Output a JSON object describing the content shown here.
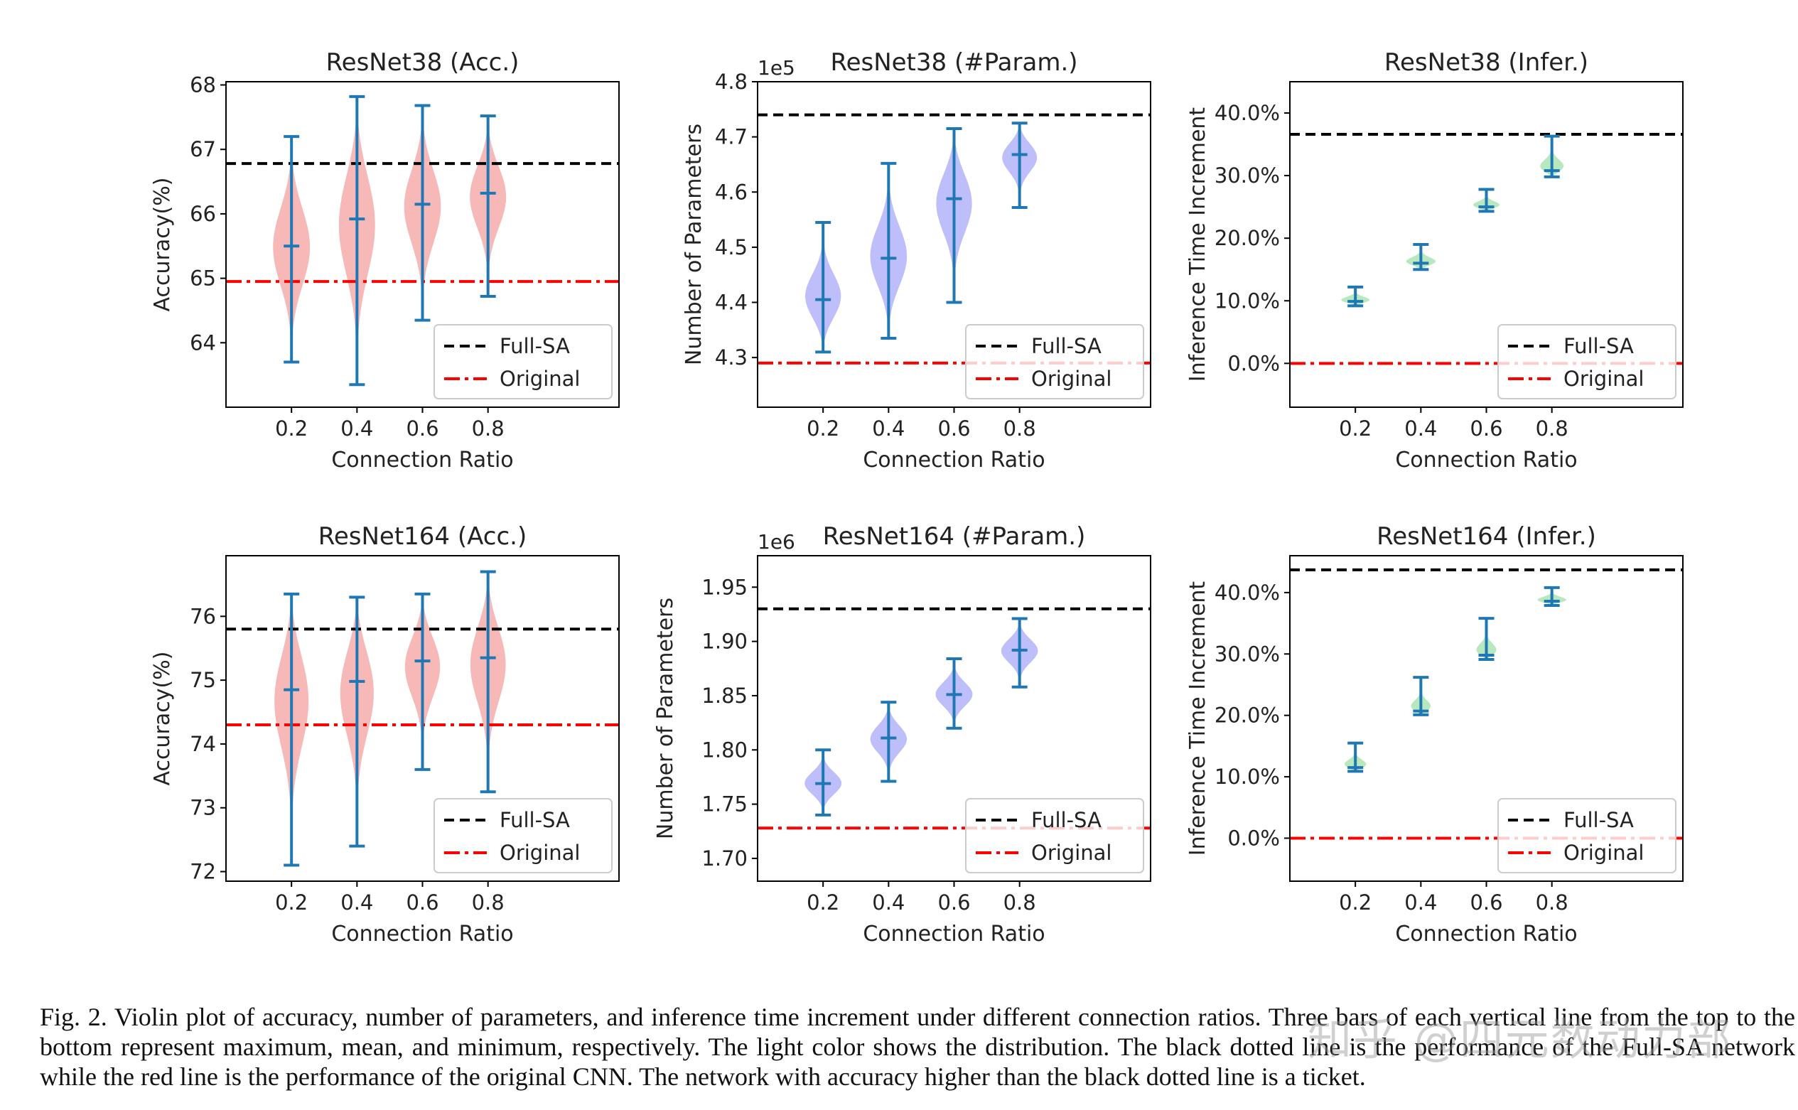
{
  "chart_data": [
    {
      "type": "violin",
      "title": "ResNet38 (Acc.)",
      "xlabel": "Connection Ratio",
      "ylabel": "Accuracy(%)",
      "offset": "",
      "categories": [
        "0.2",
        "0.4",
        "0.6",
        "0.8"
      ],
      "xlim": [
        0.0,
        1.2
      ],
      "ylim": [
        63.0,
        68.05
      ],
      "yticks": [
        64,
        65,
        66,
        67,
        68
      ],
      "yticklabels": [
        "64",
        "65",
        "66",
        "67",
        "68"
      ],
      "violin_color": "#f4a0a0",
      "stats": [
        {
          "x": 0.2,
          "max": 67.2,
          "mean": 65.5,
          "min": 63.7
        },
        {
          "x": 0.4,
          "max": 67.82,
          "mean": 65.92,
          "min": 63.35
        },
        {
          "x": 0.6,
          "max": 67.68,
          "mean": 66.15,
          "min": 64.35
        },
        {
          "x": 0.8,
          "max": 67.52,
          "mean": 66.32,
          "min": 64.72
        }
      ],
      "full_sa": 66.78,
      "original": 64.95,
      "legend": [
        "Full-SA",
        "Original"
      ],
      "legend_position": "lower-right"
    },
    {
      "type": "violin",
      "title": "ResNet38 (#Param.)",
      "xlabel": "Connection Ratio",
      "ylabel": "Number of Parameters",
      "offset": "1e5",
      "categories": [
        "0.2",
        "0.4",
        "0.6",
        "0.8"
      ],
      "xlim": [
        0.0,
        1.2
      ],
      "ylim": [
        4.21,
        4.8
      ],
      "yticks": [
        4.3,
        4.4,
        4.5,
        4.6,
        4.7,
        4.8
      ],
      "yticklabels": [
        "4.3",
        "4.4",
        "4.5",
        "4.6",
        "4.7",
        "4.8"
      ],
      "violin_color": "#a8a8f8",
      "stats": [
        {
          "x": 0.2,
          "max": 4.545,
          "mean": 4.405,
          "min": 4.31
        },
        {
          "x": 0.4,
          "max": 4.652,
          "mean": 4.48,
          "min": 4.335
        },
        {
          "x": 0.6,
          "max": 4.715,
          "mean": 4.588,
          "min": 4.4
        },
        {
          "x": 0.8,
          "max": 4.725,
          "mean": 4.668,
          "min": 4.572
        }
      ],
      "full_sa": 4.74,
      "original": 4.29,
      "legend": [
        "Full-SA",
        "Original"
      ],
      "legend_position": "lower-right"
    },
    {
      "type": "violin",
      "title": "ResNet38 (Infer.)",
      "xlabel": "Connection Ratio",
      "ylabel": "Inference Time Increment",
      "offset": "",
      "categories": [
        "0.2",
        "0.4",
        "0.6",
        "0.8"
      ],
      "xlim": [
        0.0,
        1.2
      ],
      "ylim": [
        -7.0,
        45.0
      ],
      "yticks": [
        0,
        10,
        20,
        30,
        40
      ],
      "yticklabels": [
        "0.0%",
        "10.0%",
        "20.0%",
        "30.0%",
        "40.0%"
      ],
      "violin_color": "#9fe0a8",
      "stats": [
        {
          "x": 0.2,
          "max": 12.2,
          "mean": 9.9,
          "min": 9.2
        },
        {
          "x": 0.4,
          "max": 19.0,
          "mean": 16.0,
          "min": 15.0
        },
        {
          "x": 0.6,
          "max": 27.8,
          "mean": 25.0,
          "min": 24.3
        },
        {
          "x": 0.8,
          "max": 36.3,
          "mean": 30.8,
          "min": 29.8
        }
      ],
      "full_sa": 36.6,
      "original": 0.0,
      "legend": [
        "Full-SA",
        "Original"
      ],
      "legend_position": "lower-right"
    },
    {
      "type": "violin",
      "title": "ResNet164 (Acc.)",
      "xlabel": "Connection Ratio",
      "ylabel": "Accuracy(%)",
      "offset": "",
      "categories": [
        "0.2",
        "0.4",
        "0.6",
        "0.8"
      ],
      "xlim": [
        0.0,
        1.2
      ],
      "ylim": [
        71.85,
        76.95
      ],
      "yticks": [
        72,
        73,
        74,
        75,
        76
      ],
      "yticklabels": [
        "72",
        "73",
        "74",
        "75",
        "76"
      ],
      "violin_color": "#f4a0a0",
      "stats": [
        {
          "x": 0.2,
          "max": 76.35,
          "mean": 74.85,
          "min": 72.1
        },
        {
          "x": 0.4,
          "max": 76.3,
          "mean": 74.98,
          "min": 72.4
        },
        {
          "x": 0.6,
          "max": 76.35,
          "mean": 75.3,
          "min": 73.6
        },
        {
          "x": 0.8,
          "max": 76.7,
          "mean": 75.35,
          "min": 73.25
        }
      ],
      "full_sa": 75.8,
      "original": 74.3,
      "legend": [
        "Full-SA",
        "Original"
      ],
      "legend_position": "lower-right"
    },
    {
      "type": "violin",
      "title": "ResNet164 (#Param.)",
      "xlabel": "Connection Ratio",
      "ylabel": "Number of Parameters",
      "offset": "1e6",
      "categories": [
        "0.2",
        "0.4",
        "0.6",
        "0.8"
      ],
      "xlim": [
        0.0,
        1.2
      ],
      "ylim": [
        1.679,
        1.979
      ],
      "yticks": [
        1.7,
        1.75,
        1.8,
        1.85,
        1.9,
        1.95
      ],
      "yticklabels": [
        "1.70",
        "1.75",
        "1.80",
        "1.85",
        "1.90",
        "1.95"
      ],
      "violin_color": "#a8a8f8",
      "stats": [
        {
          "x": 0.2,
          "max": 1.8,
          "mean": 1.769,
          "min": 1.74
        },
        {
          "x": 0.4,
          "max": 1.844,
          "mean": 1.811,
          "min": 1.771
        },
        {
          "x": 0.6,
          "max": 1.884,
          "mean": 1.851,
          "min": 1.82
        },
        {
          "x": 0.8,
          "max": 1.921,
          "mean": 1.892,
          "min": 1.858
        }
      ],
      "full_sa": 1.93,
      "original": 1.728,
      "legend": [
        "Full-SA",
        "Original"
      ],
      "legend_position": "lower-right"
    },
    {
      "type": "violin",
      "title": "ResNet164 (Infer.)",
      "xlabel": "Connection Ratio",
      "ylabel": "Inference Time Increment",
      "offset": "",
      "categories": [
        "0.2",
        "0.4",
        "0.6",
        "0.8"
      ],
      "xlim": [
        0.0,
        1.2
      ],
      "ylim": [
        -7.0,
        46.0
      ],
      "yticks": [
        0,
        10,
        20,
        30,
        40
      ],
      "yticklabels": [
        "0.0%",
        "10.0%",
        "20.0%",
        "30.0%",
        "40.0%"
      ],
      "violin_color": "#9fe0a8",
      "stats": [
        {
          "x": 0.2,
          "max": 15.5,
          "mean": 11.5,
          "min": 10.9
        },
        {
          "x": 0.4,
          "max": 26.2,
          "mean": 20.7,
          "min": 20.1
        },
        {
          "x": 0.6,
          "max": 35.8,
          "mean": 29.8,
          "min": 29.1
        },
        {
          "x": 0.8,
          "max": 40.8,
          "mean": 38.6,
          "min": 37.9
        }
      ],
      "full_sa": 43.7,
      "original": 0.0,
      "legend": [
        "Full-SA",
        "Original"
      ],
      "legend_position": "lower-right"
    }
  ],
  "colors": {
    "stat_lines": "#1f77b4",
    "full_sa_line": "#000000",
    "original_line": "#ff0000"
  },
  "caption": "Fig. 2.  Violin plot of accuracy, number of parameters, and inference time increment under different connection ratios. Three bars of each vertical line from the top to the bottom represent maximum, mean, and minimum, respectively. The light color shows the distribution. The black dotted line is the performance of the Full-SA network while the red line is the performance of the original CNN. The network with accuracy higher than the black dotted line is a ticket.",
  "watermark": "知乎 @四元数动力部"
}
